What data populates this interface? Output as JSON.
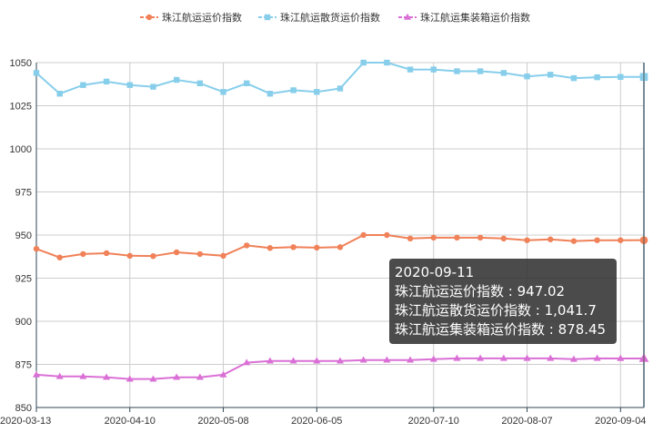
{
  "chart_data": {
    "type": "line",
    "x": [
      "2020-03-13",
      "2020-03-20",
      "2020-03-27",
      "2020-04-03",
      "2020-04-10",
      "2020-04-17",
      "2020-04-24",
      "2020-05-01",
      "2020-05-08",
      "2020-05-15",
      "2020-05-22",
      "2020-05-29",
      "2020-06-05",
      "2020-06-12",
      "2020-06-19",
      "2020-06-26",
      "2020-07-03",
      "2020-07-10",
      "2020-07-17",
      "2020-07-24",
      "2020-07-31",
      "2020-08-07",
      "2020-08-14",
      "2020-08-21",
      "2020-08-28",
      "2020-09-04",
      "2020-09-11"
    ],
    "x_tick_labels": [
      "2020-03-13",
      "2020-04-10",
      "2020-05-08",
      "2020-06-05",
      "2020-07-10",
      "2020-08-07",
      "2020-09-04"
    ],
    "x_tick_indices": [
      0,
      4,
      8,
      12,
      17,
      21,
      25
    ],
    "ylim": [
      850,
      1050
    ],
    "y_ticks": [
      850,
      875,
      900,
      925,
      950,
      975,
      1000,
      1025,
      1050
    ],
    "grid": true,
    "legend_position": "top-center",
    "series": [
      {
        "name": "珠江航运运价指数",
        "color": "#F08158",
        "marker": "circle",
        "values": [
          942,
          937,
          939,
          939.5,
          938,
          937.8,
          940,
          939,
          938,
          944,
          942.5,
          943,
          942.7,
          943,
          950,
          950,
          948,
          948.5,
          948.5,
          948.5,
          948,
          947,
          947.5,
          946.5,
          947,
          947,
          947.02
        ]
      },
      {
        "name": "珠江航运散货运价指数",
        "color": "#87CEEB",
        "marker": "square",
        "values": [
          1044,
          1032,
          1037,
          1039,
          1037,
          1036,
          1040,
          1038,
          1033,
          1038,
          1032,
          1034,
          1033,
          1035,
          1050,
          1050,
          1046,
          1046,
          1045,
          1045,
          1044,
          1042,
          1043,
          1041,
          1041.5,
          1041.7,
          1041.7
        ]
      },
      {
        "name": "珠江航运集装箱运价指数",
        "color": "#DA70D6",
        "marker": "triangle",
        "values": [
          869,
          868,
          868,
          867.5,
          866.5,
          866.5,
          867.5,
          867.5,
          869,
          876,
          877,
          877,
          877,
          877,
          877.5,
          877.5,
          877.5,
          878,
          878.5,
          878.5,
          878.5,
          878.5,
          878.5,
          878,
          878.5,
          878.45,
          878.45
        ]
      }
    ]
  },
  "tooltip": {
    "date": "2020-09-11",
    "rows": [
      {
        "label": "珠江航运运价指数",
        "value": "947.02"
      },
      {
        "label": "珠江航运散货运价指数",
        "value": "1,041.7"
      },
      {
        "label": "珠江航运集装箱运价指数",
        "value": "878.45"
      }
    ]
  },
  "colors": {
    "axis": "#2F4554",
    "grid": "#CCCCCC",
    "plot_border": "#3A7FB0"
  }
}
